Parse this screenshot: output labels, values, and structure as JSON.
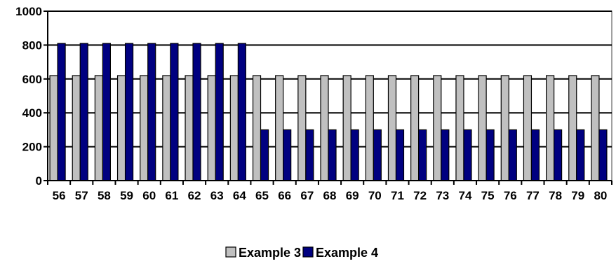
{
  "chart_data": {
    "type": "bar",
    "title": "",
    "xlabel": "",
    "ylabel": "",
    "categories": [
      "56",
      "57",
      "58",
      "59",
      "60",
      "61",
      "62",
      "63",
      "64",
      "65",
      "66",
      "67",
      "68",
      "69",
      "70",
      "71",
      "72",
      "73",
      "74",
      "75",
      "76",
      "77",
      "78",
      "79",
      "80"
    ],
    "series": [
      {
        "name": "Example 3",
        "color": "#c0c0c0",
        "values": [
          620,
          620,
          620,
          620,
          620,
          620,
          620,
          620,
          620,
          620,
          620,
          620,
          620,
          620,
          620,
          620,
          620,
          620,
          620,
          620,
          620,
          620,
          620,
          620,
          620
        ]
      },
      {
        "name": "Example 4",
        "color": "#000080",
        "values": [
          810,
          810,
          810,
          810,
          810,
          810,
          810,
          810,
          810,
          300,
          300,
          300,
          300,
          300,
          300,
          300,
          300,
          300,
          300,
          300,
          300,
          300,
          300,
          300,
          300
        ]
      }
    ],
    "ylim": [
      0,
      1000
    ],
    "yticks": [
      0,
      200,
      400,
      600,
      800,
      1000
    ],
    "grid": true,
    "legend_position": "bottom"
  }
}
